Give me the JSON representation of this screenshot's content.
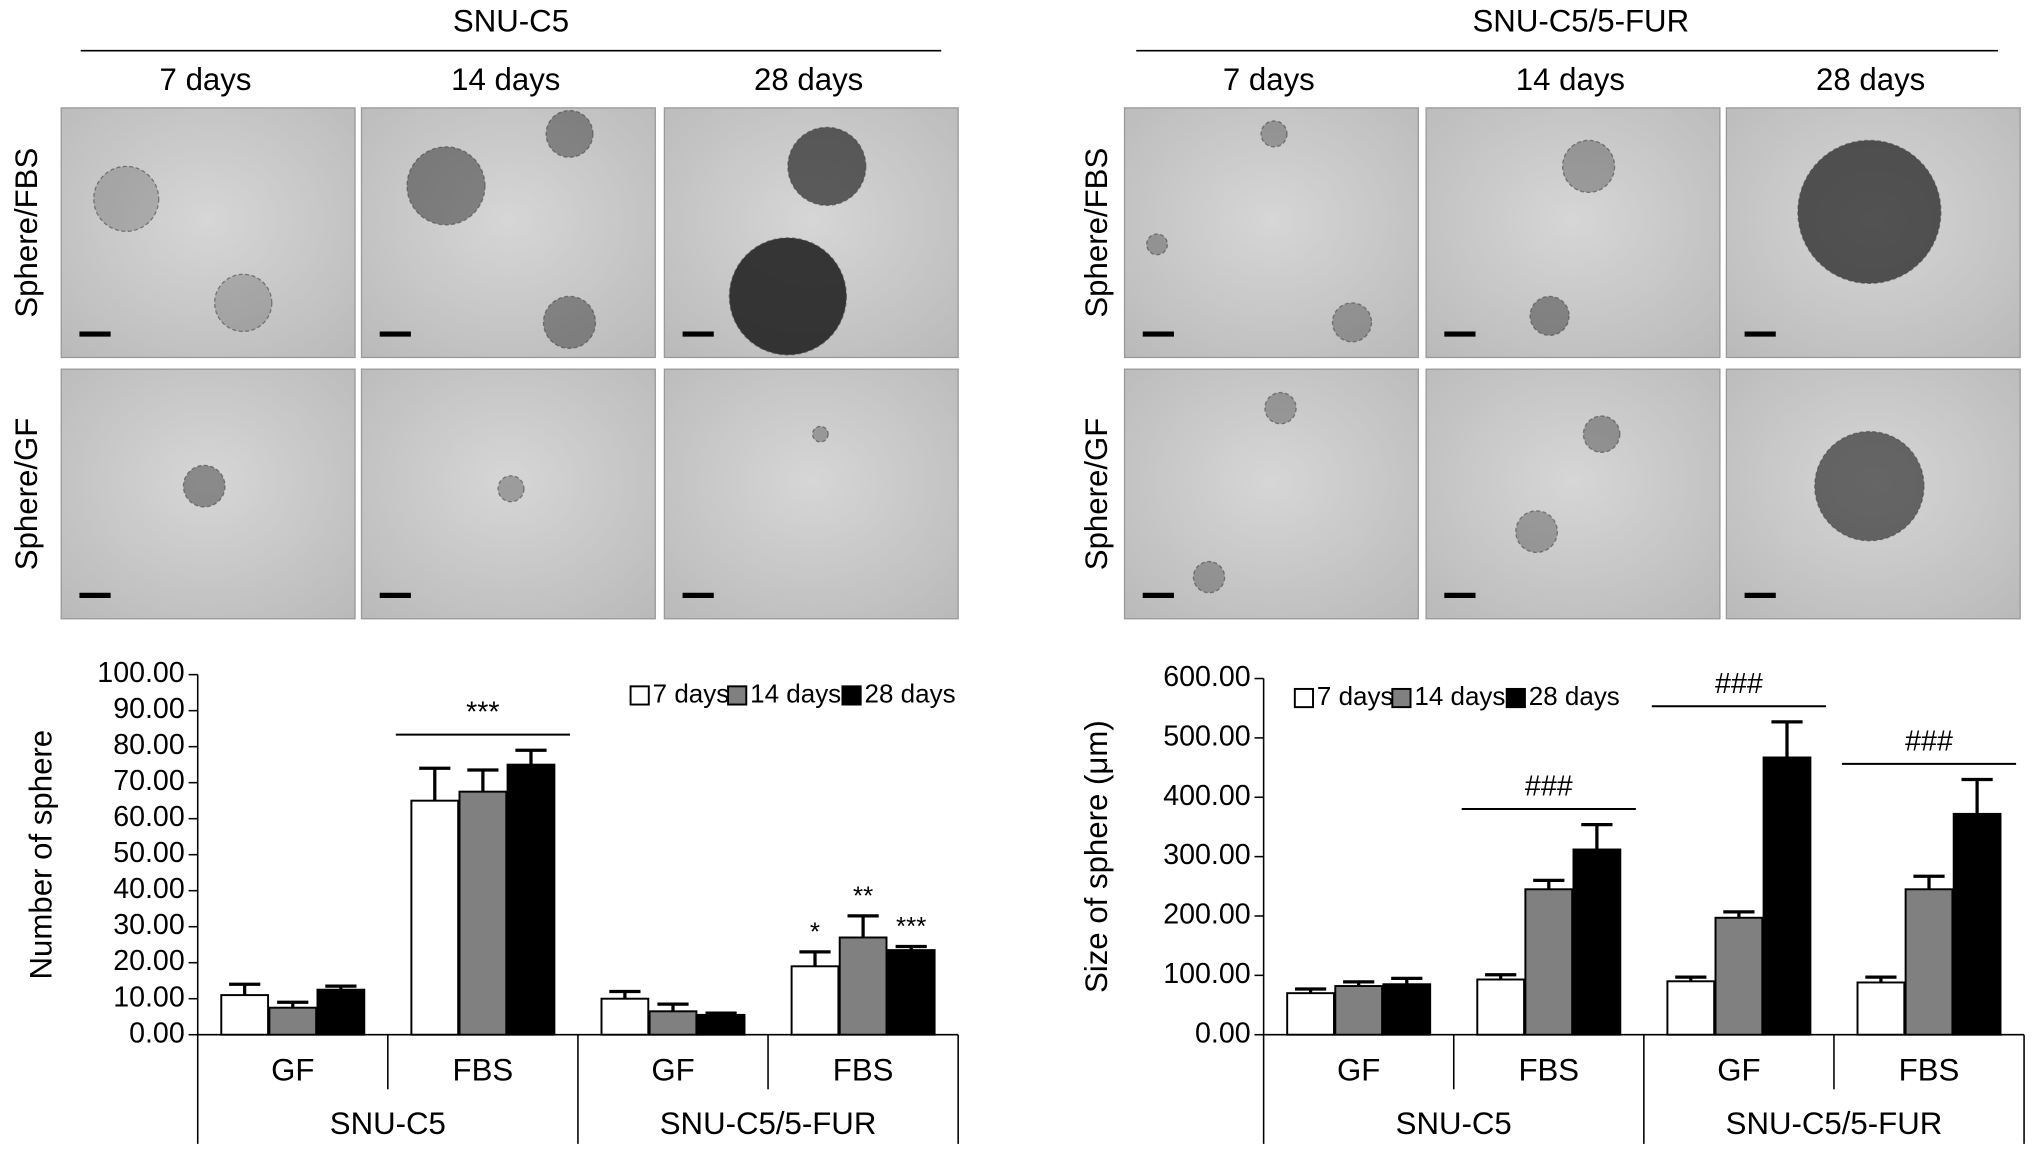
{
  "image_panels": [
    {
      "title": "SNU-C5",
      "columns": [
        "7 days",
        "14 days",
        "28 days"
      ],
      "rows": [
        "Sphere/FBS",
        "Sphere/GF"
      ]
    },
    {
      "title": "SNU-C5/5-FUR",
      "columns": [
        "7 days",
        "14 days",
        "28 days"
      ],
      "rows": [
        "Sphere/FBS",
        "Sphere/GF"
      ]
    }
  ],
  "chart_data": [
    {
      "type": "bar",
      "y_label": "Number of sphere",
      "categories": [
        "GF",
        "FBS",
        "GF",
        "FBS"
      ],
      "group_labels": [
        "SNU-C5",
        "SNU-C5/5-FUR"
      ],
      "series": [
        {
          "name": "7 days",
          "color": "#ffffff",
          "values": [
            11,
            65,
            10,
            19
          ],
          "errors": [
            3,
            9,
            2,
            4
          ],
          "significance": [
            null,
            null,
            null,
            "*"
          ]
        },
        {
          "name": "14 days",
          "color": "#808080",
          "values": [
            7.5,
            67.5,
            6.5,
            27
          ],
          "errors": [
            1.5,
            6,
            2,
            6
          ],
          "significance": [
            null,
            null,
            null,
            "**"
          ]
        },
        {
          "name": "28 days",
          "color": "#000000",
          "values": [
            12.5,
            75,
            5.5,
            23.5
          ],
          "errors": [
            1,
            4,
            0.5,
            1
          ],
          "significance": [
            null,
            null,
            null,
            "***"
          ]
        }
      ],
      "group_significance": [
        null,
        "***",
        null,
        null
      ],
      "ylim": [
        0,
        100
      ],
      "yticks": [
        {
          "value": 0,
          "label": "0.00"
        },
        {
          "value": 10,
          "label": "10.00"
        },
        {
          "value": 20,
          "label": "20.00"
        },
        {
          "value": 30,
          "label": "30.00"
        },
        {
          "value": 40,
          "label": "40.00"
        },
        {
          "value": 50,
          "label": "50.00"
        },
        {
          "value": 60,
          "label": "60.00"
        },
        {
          "value": 70,
          "label": "70.00"
        },
        {
          "value": 80,
          "label": "80.00"
        },
        {
          "value": 90,
          "label": "90.00"
        },
        {
          "value": 100,
          "label": "100.00"
        }
      ],
      "legend": "top-right"
    },
    {
      "type": "bar",
      "y_label": "Size of sphere (μm)",
      "categories": [
        "GF",
        "FBS",
        "GF",
        "FBS"
      ],
      "group_labels": [
        "SNU-C5",
        "SNU-C5/5-FUR"
      ],
      "series": [
        {
          "name": "7 days",
          "color": "#ffffff",
          "values": [
            70,
            93,
            90,
            88
          ],
          "errors": [
            7,
            8,
            7,
            9
          ]
        },
        {
          "name": "14 days",
          "color": "#808080",
          "values": [
            82,
            245,
            197,
            245
          ],
          "errors": [
            7,
            15,
            10,
            22
          ]
        },
        {
          "name": "28 days",
          "color": "#000000",
          "values": [
            85,
            312,
            467,
            372
          ],
          "errors": [
            10,
            42,
            60,
            58
          ]
        }
      ],
      "group_significance": [
        null,
        "###",
        "###",
        "###"
      ],
      "ylim": [
        0,
        600
      ],
      "yticks": [
        {
          "value": 0,
          "label": "0.00"
        },
        {
          "value": 100,
          "label": "100.00"
        },
        {
          "value": 200,
          "label": "200.00"
        },
        {
          "value": 300,
          "label": "300.00"
        },
        {
          "value": 400,
          "label": "400.00"
        },
        {
          "value": 500,
          "label": "500.00"
        },
        {
          "value": 600,
          "label": "600.00"
        }
      ],
      "legend": "top-left"
    }
  ]
}
